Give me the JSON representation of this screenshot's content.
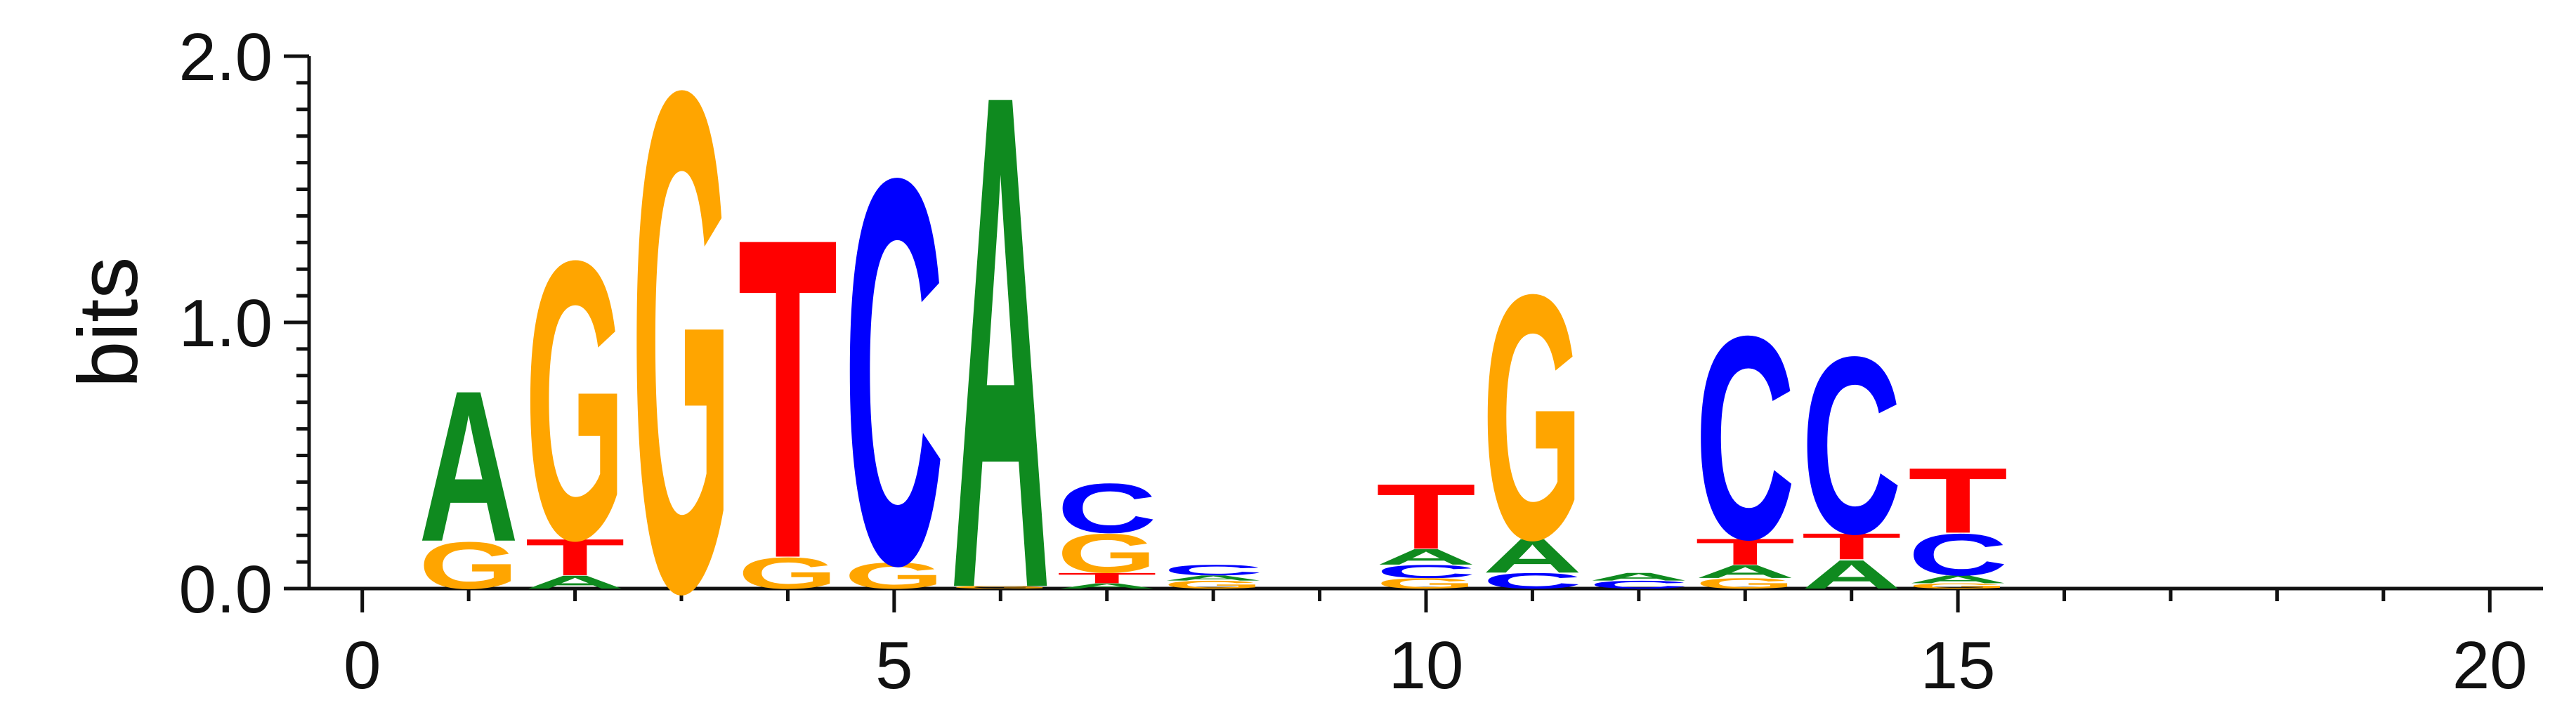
{
  "chart_data": {
    "type": "sequence-logo",
    "ylabel": "bits",
    "xlim": [
      -0.5,
      20.5
    ],
    "ylim": [
      0,
      2.0
    ],
    "x_ticks": [
      0,
      5,
      10,
      15,
      20
    ],
    "y_ticks": [
      0.0,
      1.0,
      2.0
    ],
    "x_tick_labels": [
      "0",
      "5",
      "10",
      "15",
      "20"
    ],
    "y_tick_labels": [
      "0.0",
      "1.0",
      "2.0"
    ],
    "colors": {
      "A": "#0f8a1f",
      "C": "#0000ff",
      "G": "#ffa500",
      "T": "#ff0000"
    },
    "positions": [
      {
        "x": 1,
        "letters": [
          {
            "letter": "G",
            "height": 0.18
          },
          {
            "letter": "A",
            "height": 0.58
          }
        ]
      },
      {
        "x": 2,
        "letters": [
          {
            "letter": "A",
            "height": 0.05
          },
          {
            "letter": "T",
            "height": 0.14
          },
          {
            "letter": "G",
            "height": 1.07
          }
        ]
      },
      {
        "x": 3,
        "letters": [
          {
            "letter": "G",
            "height": 1.92
          }
        ]
      },
      {
        "x": 4,
        "letters": [
          {
            "letter": "G",
            "height": 0.12
          },
          {
            "letter": "T",
            "height": 1.23
          }
        ]
      },
      {
        "x": 5,
        "letters": [
          {
            "letter": "G",
            "height": 0.1
          },
          {
            "letter": "C",
            "height": 1.48
          }
        ]
      },
      {
        "x": 6,
        "letters": [
          {
            "letter": "G",
            "height": 0.01
          },
          {
            "letter": "A",
            "height": 1.9
          }
        ]
      },
      {
        "x": 7,
        "letters": [
          {
            "letter": "A",
            "height": 0.02
          },
          {
            "letter": "T",
            "height": 0.04
          },
          {
            "letter": "G",
            "height": 0.15
          },
          {
            "letter": "C",
            "height": 0.19
          }
        ]
      },
      {
        "x": 8,
        "letters": [
          {
            "letter": "G",
            "height": 0.03
          },
          {
            "letter": "A",
            "height": 0.02
          },
          {
            "letter": "C",
            "height": 0.04
          }
        ]
      },
      {
        "x": 10,
        "letters": [
          {
            "letter": "G",
            "height": 0.04
          },
          {
            "letter": "C",
            "height": 0.05
          },
          {
            "letter": "A",
            "height": 0.06
          },
          {
            "letter": "T",
            "height": 0.25
          }
        ]
      },
      {
        "x": 11,
        "letters": [
          {
            "letter": "C",
            "height": 0.06
          },
          {
            "letter": "A",
            "height": 0.13
          },
          {
            "letter": "G",
            "height": 0.94
          }
        ]
      },
      {
        "x": 12,
        "letters": [
          {
            "letter": "C",
            "height": 0.03
          },
          {
            "letter": "A",
            "height": 0.03
          }
        ]
      },
      {
        "x": 13,
        "letters": [
          {
            "letter": "G",
            "height": 0.04
          },
          {
            "letter": "A",
            "height": 0.05
          },
          {
            "letter": "T",
            "height": 0.1
          },
          {
            "letter": "C",
            "height": 0.78
          }
        ]
      },
      {
        "x": 14,
        "letters": [
          {
            "letter": "A",
            "height": 0.11
          },
          {
            "letter": "T",
            "height": 0.1
          },
          {
            "letter": "C",
            "height": 0.68
          }
        ]
      },
      {
        "x": 15,
        "letters": [
          {
            "letter": "G",
            "height": 0.02
          },
          {
            "letter": "A",
            "height": 0.03
          },
          {
            "letter": "C",
            "height": 0.16
          },
          {
            "letter": "T",
            "height": 0.25
          }
        ]
      }
    ]
  }
}
